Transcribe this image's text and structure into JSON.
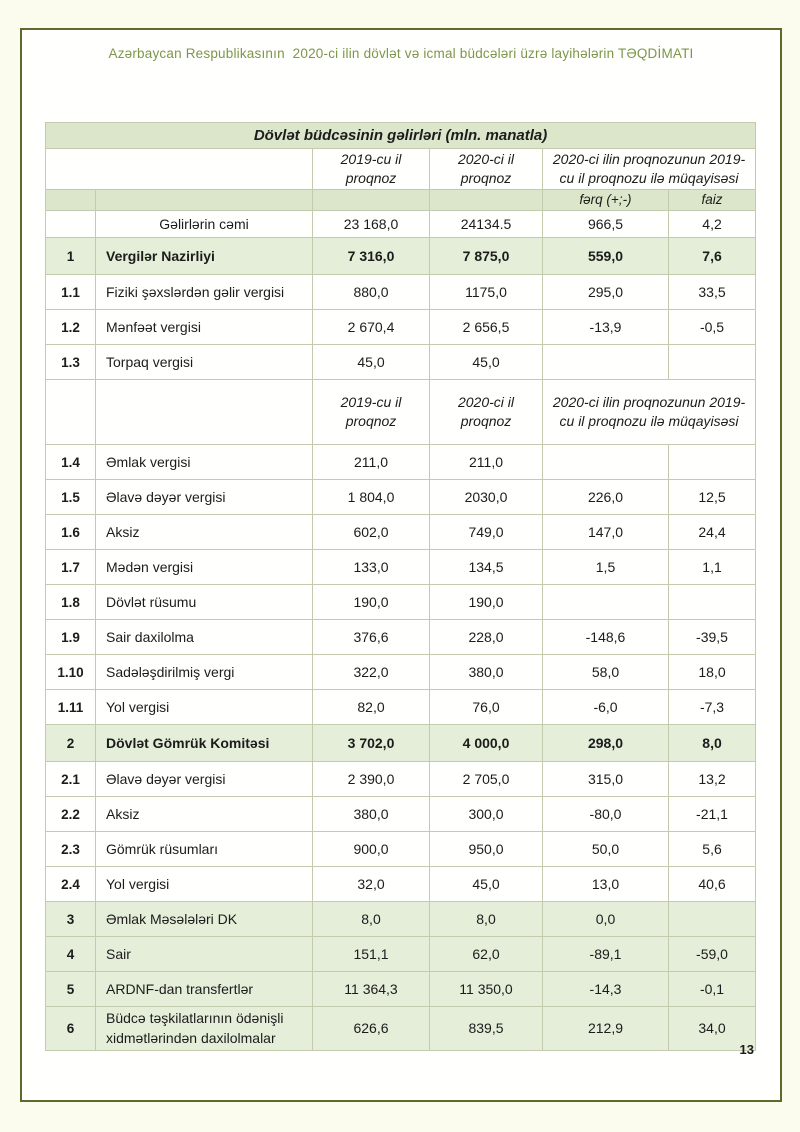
{
  "page": {
    "heading": "Azərbaycan Respublikasının  2020-ci ilin dövlət və icmal büdcələri üzrə layihələrin TƏQDİMATI",
    "page_number": "13"
  },
  "colors": {
    "frame_border": "#5f682d",
    "heading_text": "#7d964b",
    "table_grid": "#c4caae",
    "green_band": "#dce6ca",
    "green_row": "#e4eed9",
    "page_outside": "#fbfbee"
  },
  "table": {
    "title": "Dövlət büdcəsinin gəlirləri (mln. manatla)",
    "headers": {
      "col_2019": "2019-cu il\nproqnoz",
      "col_2020": "2020-ci il\nproqnoz",
      "col_compare": "2020-ci ilin proqnozunun 2019-\ncu il proqnozu ilə müqayisəsi",
      "sub_ferq": "fərq (+;-)",
      "sub_faiz": "faiz"
    },
    "rows": [
      {
        "type": "total",
        "num": "",
        "name": "Gəlirlərin cəmi",
        "y2019": "23 168,0",
        "y2020": "24134.5",
        "ferq": "966,5",
        "faiz": "4,2"
      },
      {
        "type": "section",
        "num": "1",
        "name": "Vergilər Nazirliyi",
        "y2019": "7 316,0",
        "y2020": "7 875,0",
        "ferq": "559,0",
        "faiz": "7,6"
      },
      {
        "type": "item",
        "num": "1.1",
        "name": "Fiziki şəxslərdən gəlir vergisi",
        "y2019": "880,0",
        "y2020": "1175,0",
        "ferq": "295,0",
        "faiz": "33,5"
      },
      {
        "type": "item",
        "num": "1.2",
        "name": "Mənfəət vergisi",
        "y2019": "2 670,4",
        "y2020": "2 656,5",
        "ferq": "-13,9",
        "faiz": "-0,5"
      },
      {
        "type": "item",
        "num": "1.3",
        "name": "Torpaq vergisi",
        "y2019": "45,0",
        "y2020": "45,0",
        "ferq": "",
        "faiz": ""
      },
      {
        "type": "repeat_header"
      },
      {
        "type": "item",
        "num": "1.4",
        "name": "Əmlak vergisi",
        "y2019": "211,0",
        "y2020": "211,0",
        "ferq": "",
        "faiz": ""
      },
      {
        "type": "item",
        "num": "1.5",
        "name": "Əlavə dəyər vergisi",
        "y2019": "1 804,0",
        "y2020": "2030,0",
        "ferq": "226,0",
        "faiz": "12,5"
      },
      {
        "type": "item",
        "num": "1.6",
        "name": "Aksiz",
        "y2019": "602,0",
        "y2020": "749,0",
        "ferq": "147,0",
        "faiz": "24,4"
      },
      {
        "type": "item",
        "num": "1.7",
        "name": "Mədən vergisi",
        "y2019": "133,0",
        "y2020": "134,5",
        "ferq": "1,5",
        "faiz": "1,1"
      },
      {
        "type": "item",
        "num": "1.8",
        "name": "Dövlət rüsumu",
        "y2019": "190,0",
        "y2020": "190,0",
        "ferq": "",
        "faiz": ""
      },
      {
        "type": "item",
        "num": "1.9",
        "name": "Sair daxilolma",
        "y2019": "376,6",
        "y2020": "228,0",
        "ferq": "-148,6",
        "faiz": "-39,5"
      },
      {
        "type": "item",
        "num": "1.10",
        "name": "Sadələşdirilmiş  vergi",
        "y2019": "322,0",
        "y2020": "380,0",
        "ferq": "58,0",
        "faiz": "18,0"
      },
      {
        "type": "item",
        "num": "1.11",
        "name": "Yol vergisi",
        "y2019": "82,0",
        "y2020": "76,0",
        "ferq": "-6,0",
        "faiz": "-7,3"
      },
      {
        "type": "section",
        "num": "2",
        "name": "Dövlət Gömrük Komitəsi",
        "y2019": "3 702,0",
        "y2020": "4 000,0",
        "ferq": "298,0",
        "faiz": "8,0"
      },
      {
        "type": "item",
        "num": "2.1",
        "name": "Əlavə dəyər vergisi",
        "y2019": "2 390,0",
        "y2020": "2 705,0",
        "ferq": "315,0",
        "faiz": "13,2"
      },
      {
        "type": "item",
        "num": "2.2",
        "name": "Aksiz",
        "y2019": "380,0",
        "y2020": "300,0",
        "ferq": "-80,0",
        "faiz": "-21,1"
      },
      {
        "type": "item",
        "num": "2.3",
        "name": "Gömrük  rüsumları",
        "y2019": "900,0",
        "y2020": "950,0",
        "ferq": "50,0",
        "faiz": "5,6"
      },
      {
        "type": "item",
        "num": "2.4",
        "name": "Yol vergisi",
        "y2019": "32,0",
        "y2020": "45,0",
        "ferq": "13,0",
        "faiz": "40,6"
      },
      {
        "type": "green",
        "num": "3",
        "name": "Əmlak Məsələləri DK",
        "y2019": "8,0",
        "y2020": "8,0",
        "ferq": "0,0",
        "faiz": ""
      },
      {
        "type": "green",
        "num": "4",
        "name": "Sair",
        "y2019": "151,1",
        "y2020": "62,0",
        "ferq": "-89,1",
        "faiz": "-59,0"
      },
      {
        "type": "green",
        "num": "5",
        "name": "ARDNF-dan transfertlər",
        "y2019": "11 364,3",
        "y2020": "11 350,0",
        "ferq": "-14,3",
        "faiz": "-0,1"
      },
      {
        "type": "green",
        "num": "6",
        "name": "Büdcə təşkilatlarının ödənişli xidmətlərindən daxilolmalar",
        "y2019": "626,6",
        "y2020": "839,5",
        "ferq": "212,9",
        "faiz": "34,0"
      }
    ]
  }
}
